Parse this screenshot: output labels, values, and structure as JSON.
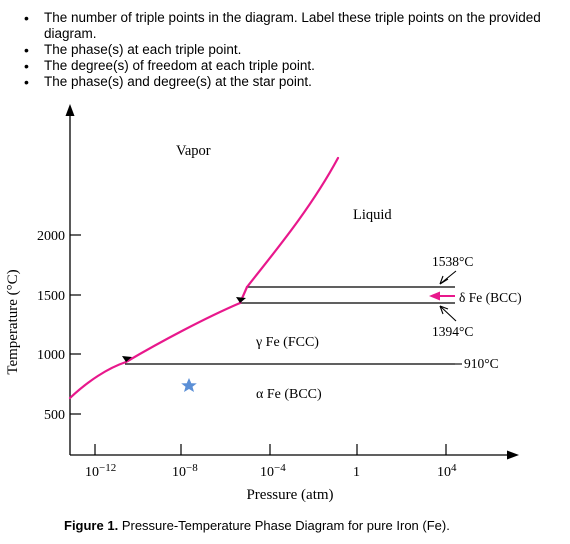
{
  "questions": [
    "The number of triple points in the diagram.  Label these triple points on the provided diagram.",
    "The phase(s) at each triple point.",
    "The degree(s) of freedom at each triple point.",
    "The phase(s) and degree(s) at the star point."
  ],
  "diagram": {
    "y_axis_label": "Temperature (°C)",
    "x_axis_label": "Pressure (atm)",
    "y_ticks": [
      "2000",
      "1500",
      "1000",
      "500"
    ],
    "x_ticks": [
      {
        "base": "10",
        "exp": "−12"
      },
      {
        "base": "10",
        "exp": "−8"
      },
      {
        "base": "10",
        "exp": "−4"
      },
      {
        "base": "1",
        "exp": ""
      },
      {
        "base": "10",
        "exp": "4"
      }
    ],
    "regions": {
      "vapor": "Vapor",
      "liquid": "Liquid",
      "gamma": "γ Fe (FCC)",
      "alpha": "α Fe (BCC)"
    },
    "annotations": {
      "t1538": "1538°C",
      "delta": "δ Fe (BCC)",
      "t1394": "1394°C",
      "t910": "910°C"
    },
    "colors": {
      "phase_boundary": "#e8188c",
      "lines": "#000000",
      "star": "#5b8fd6"
    },
    "marker": "star-icon"
  },
  "caption": {
    "label": "Figure 1.",
    "text": "Pressure-Temperature Phase Diagram for pure Iron (Fe)."
  }
}
